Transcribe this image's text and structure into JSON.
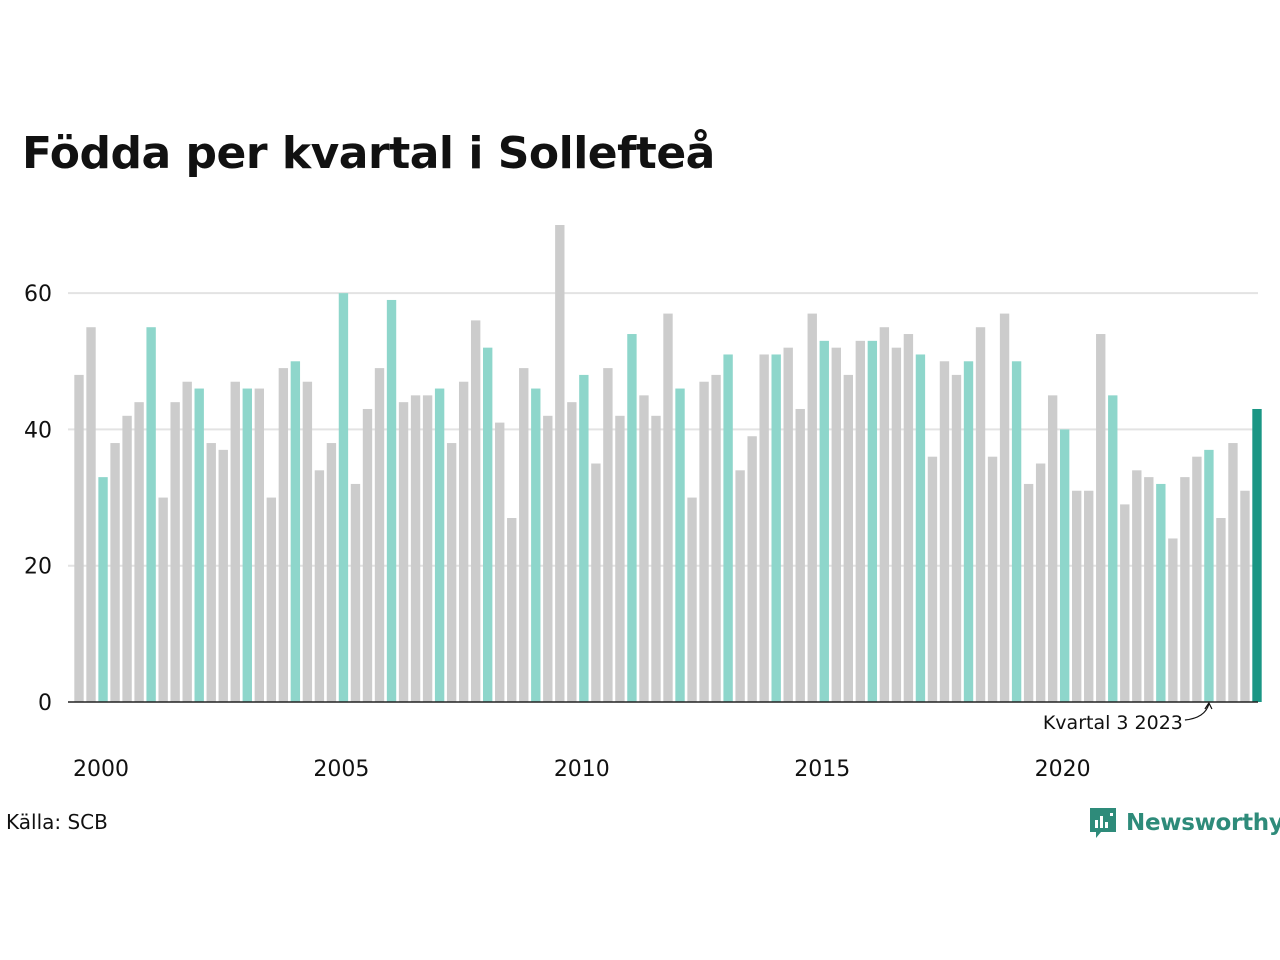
{
  "title": "Födda per kvartal i Sollefteå",
  "source": "Källa: SCB",
  "brand": {
    "name": "Newsworthy",
    "icon": "newsworthy-logo-icon"
  },
  "colors": {
    "other": "#cccccc",
    "q3": "#8ed6cb",
    "latest": "#1a9684"
  },
  "annotation": {
    "text": "Kvartal 3 2023",
    "target_year": 2023,
    "target_quarter": 3
  },
  "chart_data": {
    "type": "bar",
    "title": "Födda per kvartal i Sollefteå",
    "xlabel": "",
    "ylabel": "",
    "ylim": [
      0,
      70
    ],
    "yticks": [
      0,
      20,
      40,
      60
    ],
    "xticks": [
      "2000",
      "2005",
      "2010",
      "2015",
      "2020"
    ],
    "grid": true,
    "start_year": 2000,
    "highlight_quarter": 3,
    "values": [
      48,
      55,
      33,
      38,
      42,
      44,
      55,
      30,
      44,
      47,
      46,
      38,
      37,
      47,
      46,
      46,
      30,
      49,
      50,
      47,
      34,
      38,
      60,
      32,
      43,
      49,
      59,
      44,
      45,
      45,
      46,
      38,
      47,
      56,
      52,
      41,
      27,
      49,
      46,
      42,
      70,
      44,
      48,
      35,
      49,
      42,
      54,
      45,
      42,
      57,
      46,
      30,
      47,
      48,
      51,
      34,
      39,
      51,
      51,
      52,
      43,
      57,
      53,
      52,
      48,
      53,
      53,
      55,
      52,
      54,
      51,
      36,
      50,
      48,
      50,
      55,
      36,
      57,
      50,
      32,
      35,
      45,
      40,
      31,
      31,
      54,
      45,
      29,
      34,
      33,
      32,
      24,
      33,
      36,
      37,
      27,
      38,
      31,
      43
    ]
  }
}
